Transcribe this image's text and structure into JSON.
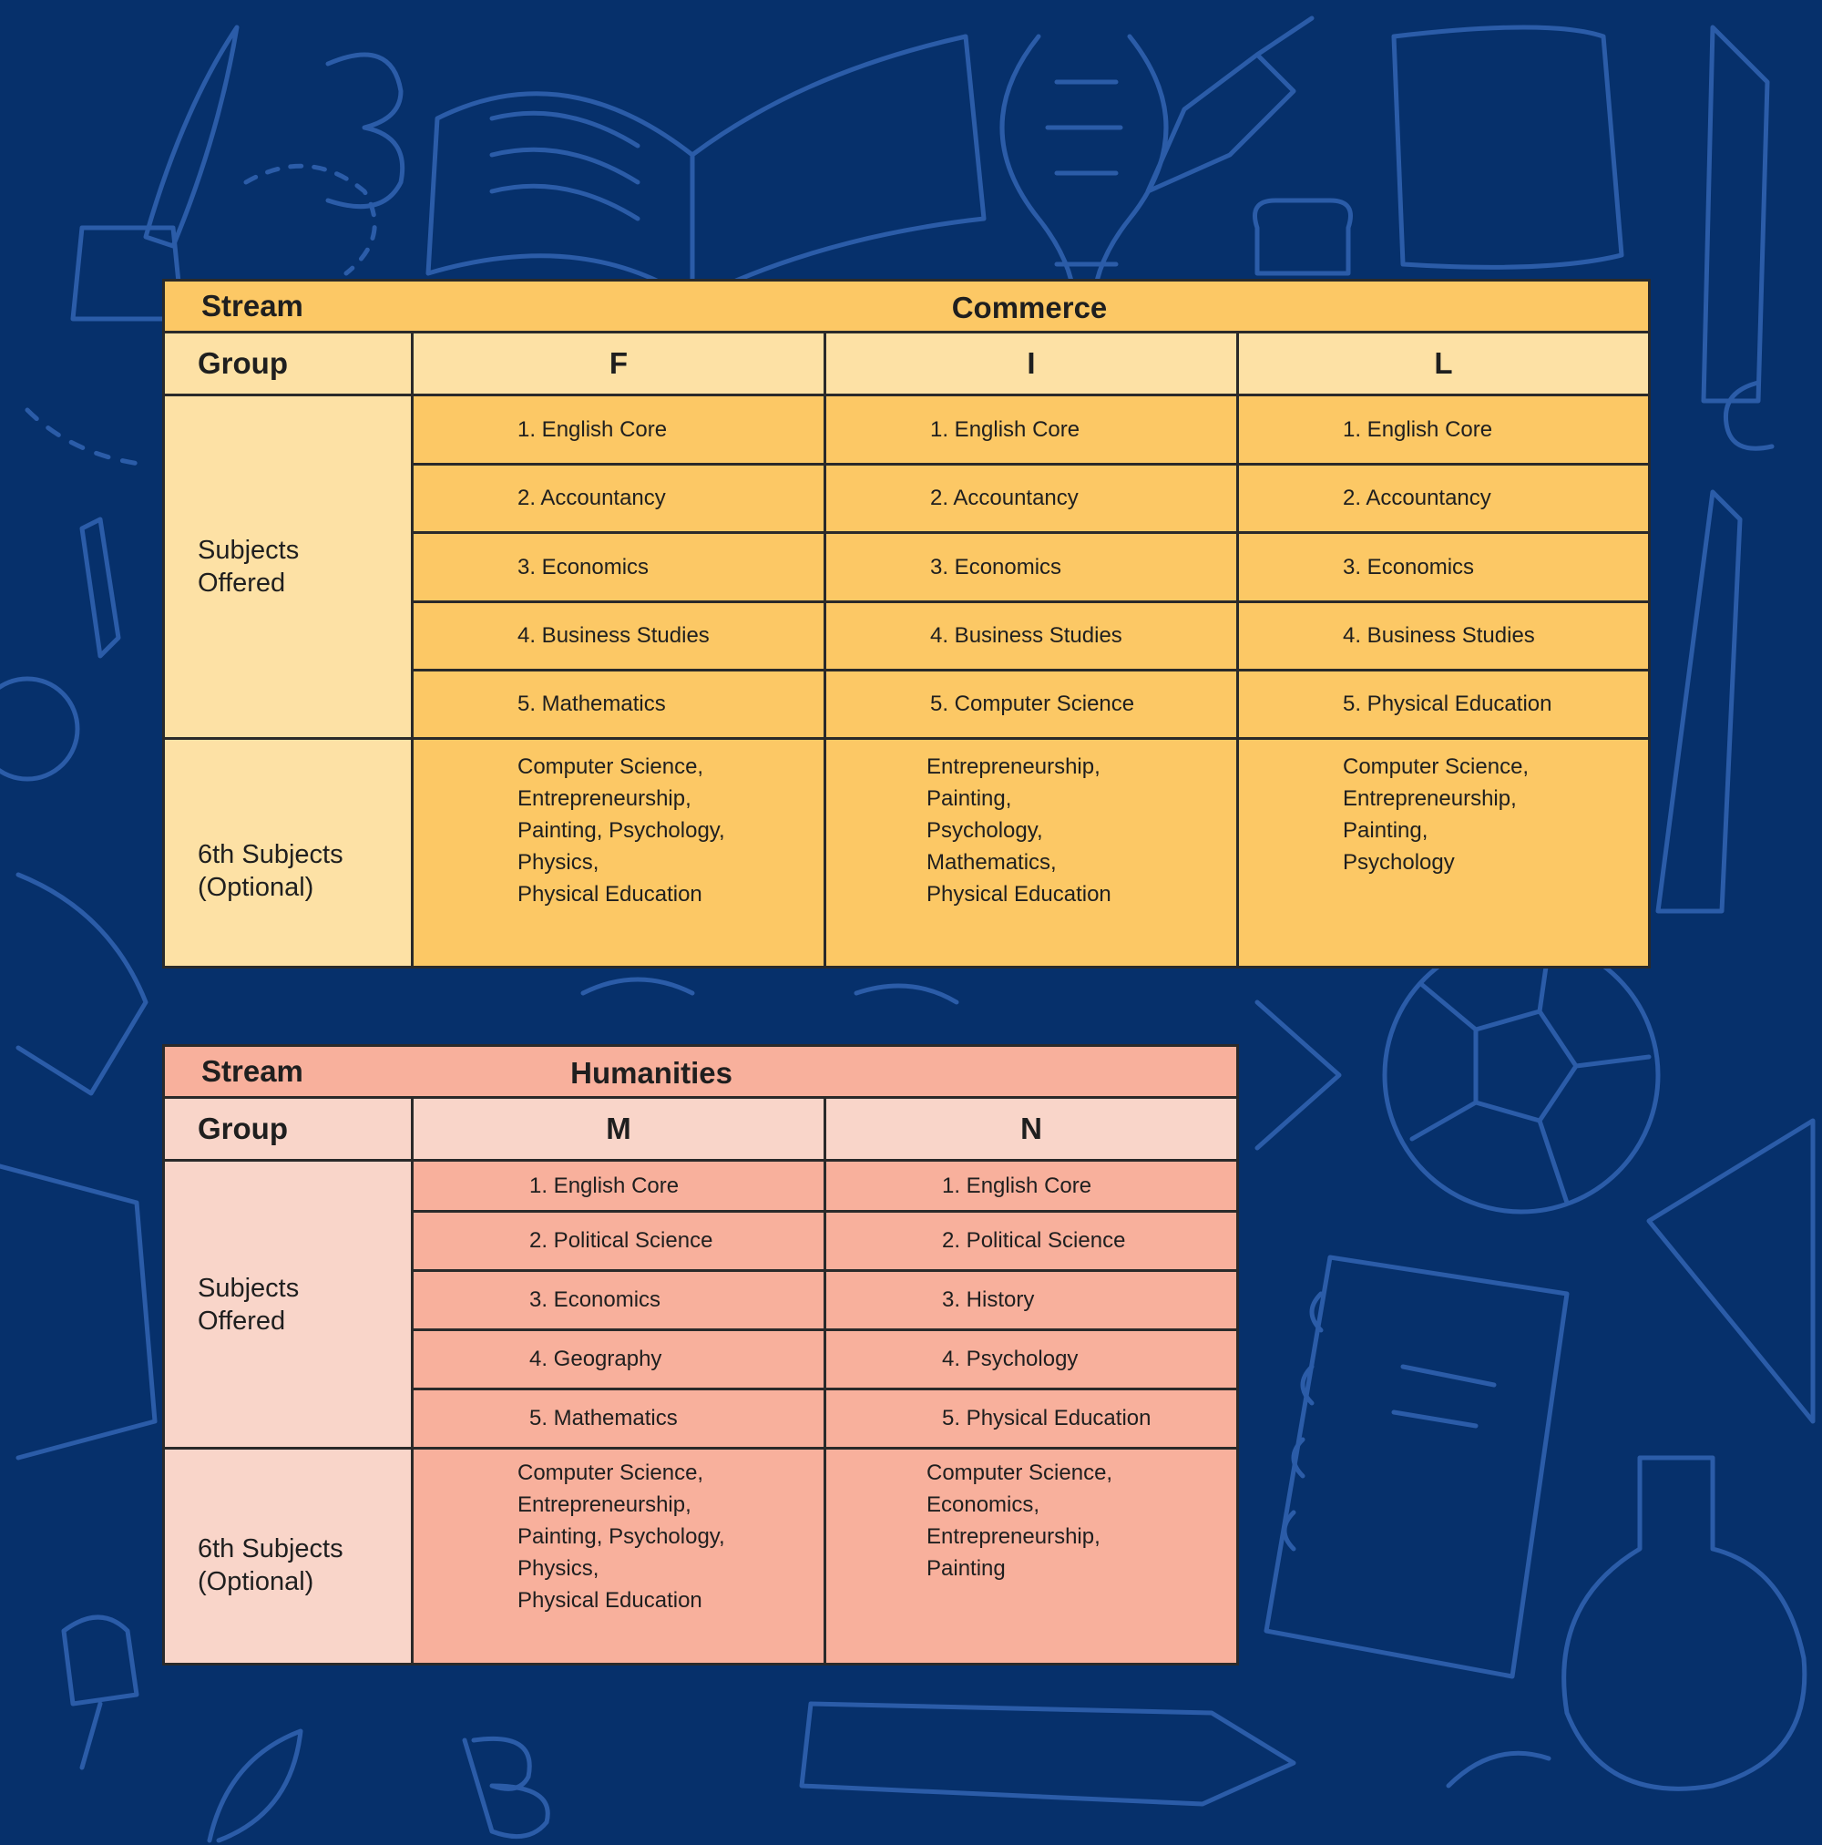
{
  "background_color": "#06306b",
  "doodle_color": "#2b5ca8",
  "commerce": {
    "colors": {
      "header": "#fcc865",
      "light": "#fde1a5",
      "cells": "#fcc865"
    },
    "stream_label": "Stream",
    "stream_name": "Commerce",
    "group_label": "Group",
    "subjects_label": "Subjects\nOffered",
    "optional_label": "6th Subjects\n(Optional)",
    "groups": [
      {
        "name": "F",
        "subjects": [
          "1. English Core",
          "2. Accountancy",
          "3. Economics",
          "4. Business Studies",
          "5. Mathematics"
        ],
        "optional": "Computer Science,\nEntrepreneurship,\nPainting, Psychology,\nPhysics,\nPhysical Education"
      },
      {
        "name": "I",
        "subjects": [
          "1. English Core",
          "2. Accountancy",
          "3. Economics",
          "4. Business Studies",
          "5. Computer Science"
        ],
        "optional": "Entrepreneurship,\nPainting,\nPsychology,\nMathematics,\nPhysical Education"
      },
      {
        "name": "L",
        "subjects": [
          "1. English Core",
          "2. Accountancy",
          "3. Economics",
          "4. Business Studies",
          "5. Physical Education"
        ],
        "optional": "Computer Science,\nEntrepreneurship,\nPainting,\nPsychology"
      }
    ]
  },
  "humanities": {
    "colors": {
      "header": "#f8b09c",
      "light": "#f9d5c9",
      "cells": "#f8b09c"
    },
    "stream_label": "Stream",
    "stream_name": "Humanities",
    "group_label": "Group",
    "subjects_label": "Subjects\nOffered",
    "optional_label": "6th Subjects\n(Optional)",
    "groups": [
      {
        "name": "M",
        "subjects": [
          "1. English Core",
          "2. Political Science",
          "3. Economics",
          "4. Geography",
          "5. Mathematics"
        ],
        "optional": "Computer Science,\nEntrepreneurship,\nPainting, Psychology,\nPhysics,\nPhysical Education"
      },
      {
        "name": "N",
        "subjects": [
          "1. English Core",
          "2. Political Science",
          "3. History",
          "4. Psychology",
          "5. Physical Education"
        ],
        "optional": "Computer Science,\nEconomics,\nEntrepreneurship,\nPainting"
      }
    ]
  }
}
